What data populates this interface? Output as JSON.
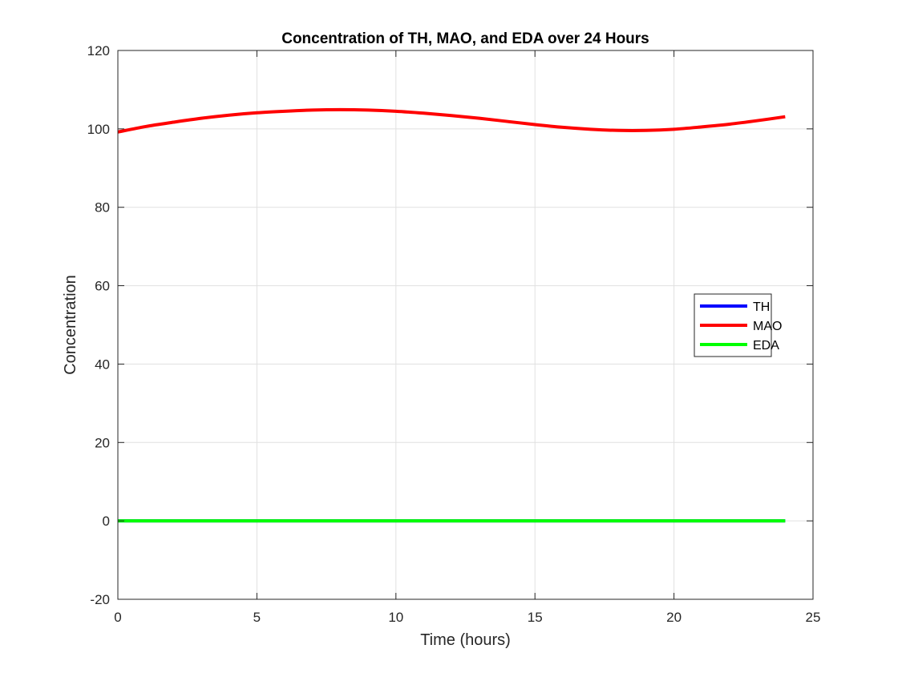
{
  "chart_data": {
    "type": "line",
    "title": "Concentration of TH, MAO, and EDA over 24 Hours",
    "xlabel": "Time (hours)",
    "ylabel": "Concentration",
    "xlim": [
      0,
      25
    ],
    "ylim": [
      -20,
      120
    ],
    "xticks": [
      0,
      5,
      10,
      15,
      20,
      25
    ],
    "yticks": [
      -20,
      0,
      20,
      40,
      60,
      80,
      100,
      120
    ],
    "grid": true,
    "legend_position": "right",
    "x": [
      0,
      1,
      2,
      3,
      4,
      5,
      6,
      7,
      8,
      9,
      10,
      11,
      12,
      13,
      14,
      15,
      16,
      17,
      18,
      19,
      20,
      21,
      22,
      23,
      24
    ],
    "series": [
      {
        "name": "TH",
        "color": "#0000ff",
        "values": [
          0,
          0,
          0,
          0,
          0,
          0,
          0,
          0,
          0,
          0,
          0,
          0,
          0,
          0,
          0,
          0,
          0,
          0,
          0,
          0,
          0,
          0,
          0,
          0,
          0
        ]
      },
      {
        "name": "MAO",
        "color": "#ff0000",
        "values": [
          99.2,
          100.6,
          101.7,
          102.7,
          103.5,
          104.1,
          104.5,
          104.8,
          104.9,
          104.8,
          104.5,
          104.0,
          103.4,
          102.7,
          101.9,
          101.1,
          100.4,
          99.9,
          99.6,
          99.6,
          99.9,
          100.5,
          101.2,
          102.1,
          103.1
        ]
      },
      {
        "name": "EDA",
        "color": "#00ff00",
        "values": [
          0,
          0,
          0,
          0,
          0,
          0,
          0,
          0,
          0,
          0,
          0,
          0,
          0,
          0,
          0,
          0,
          0,
          0,
          0,
          0,
          0,
          0,
          0,
          0,
          0
        ]
      }
    ]
  }
}
